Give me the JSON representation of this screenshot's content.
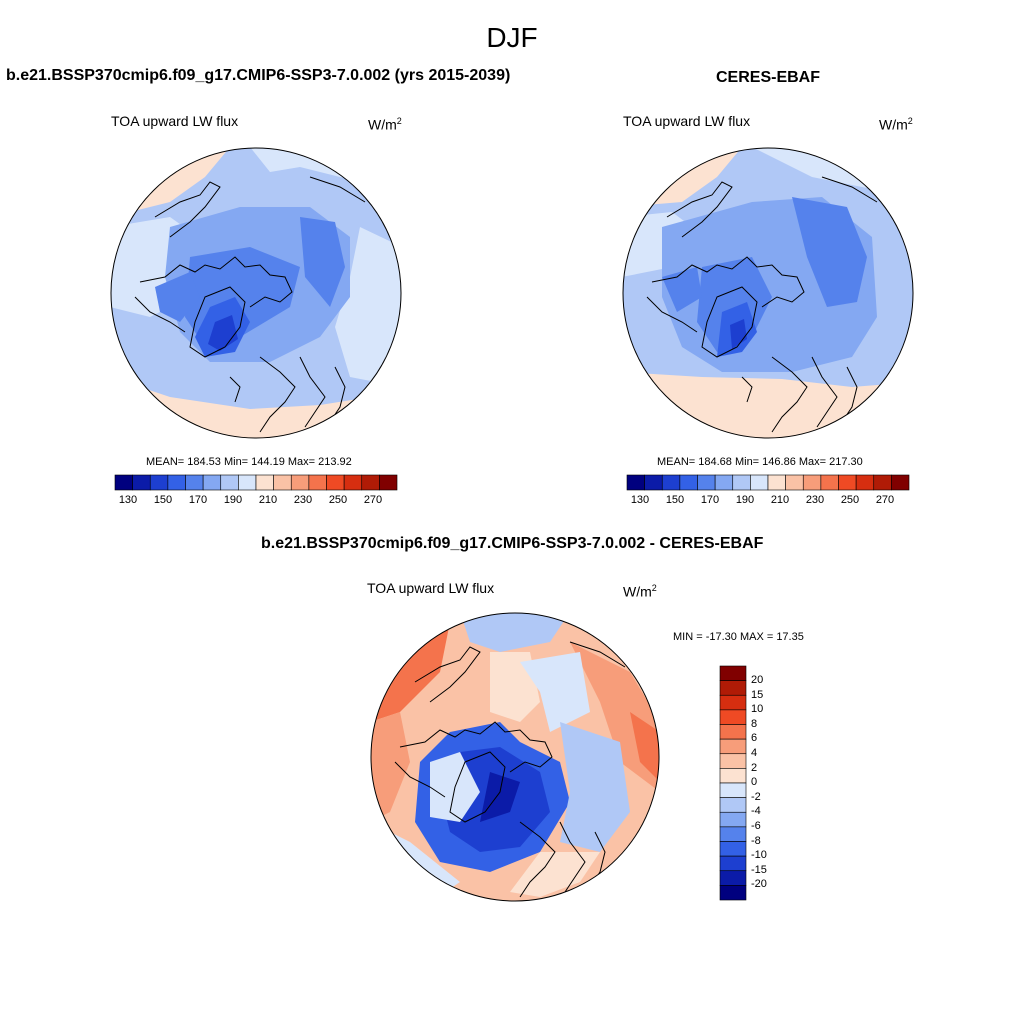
{
  "season": "DJF",
  "panels": {
    "model": {
      "title": "b.e21.BSSP370cmip6.f09_g17.CMIP6-SSP3-7.0.002 (yrs 2015-2039)",
      "variable": "TOA upward LW flux",
      "units": "W/m",
      "units_exp": "2",
      "stats": "MEAN= 184.53  Min= 144.19  Max= 213.92"
    },
    "obs": {
      "title": "CERES-EBAF",
      "variable": "TOA upward LW flux",
      "units": "W/m",
      "units_exp": "2",
      "stats": "MEAN= 184.68  Min= 146.86  Max= 217.30"
    },
    "diff": {
      "title": "b.e21.BSSP370cmip6.f09_g17.CMIP6-SSP3-7.0.002 - CERES-EBAF",
      "variable": "TOA upward LW flux",
      "units": "W/m",
      "units_exp": "2",
      "stats": "MIN = -17.30 MAX =  17.35"
    }
  },
  "colorbar_abs": {
    "labels": [
      "130",
      "150",
      "170",
      "190",
      "210",
      "230",
      "250",
      "270"
    ],
    "colors": [
      "#00007f",
      "#0b1ba8",
      "#1d3fd0",
      "#3361e6",
      "#5582ec",
      "#84a8f2",
      "#b0c8f6",
      "#d8e6fb",
      "#fce2d1",
      "#fac2a6",
      "#f79d7a",
      "#f4734c",
      "#ef4a24",
      "#d62e10",
      "#b01b06",
      "#800000"
    ]
  },
  "colorbar_diff": {
    "labels": [
      "20",
      "15",
      "10",
      "8",
      "6",
      "4",
      "2",
      "0",
      "-2",
      "-4",
      "-6",
      "-8",
      "-10",
      "-15",
      "-20"
    ],
    "colors": [
      "#800000",
      "#b01b06",
      "#d62e10",
      "#ef4a24",
      "#f4734c",
      "#f79d7a",
      "#fac2a6",
      "#fce2d1",
      "#d8e6fb",
      "#b0c8f6",
      "#84a8f2",
      "#5582ec",
      "#3361e6",
      "#1d3fd0",
      "#0b1ba8",
      "#00007f"
    ]
  }
}
